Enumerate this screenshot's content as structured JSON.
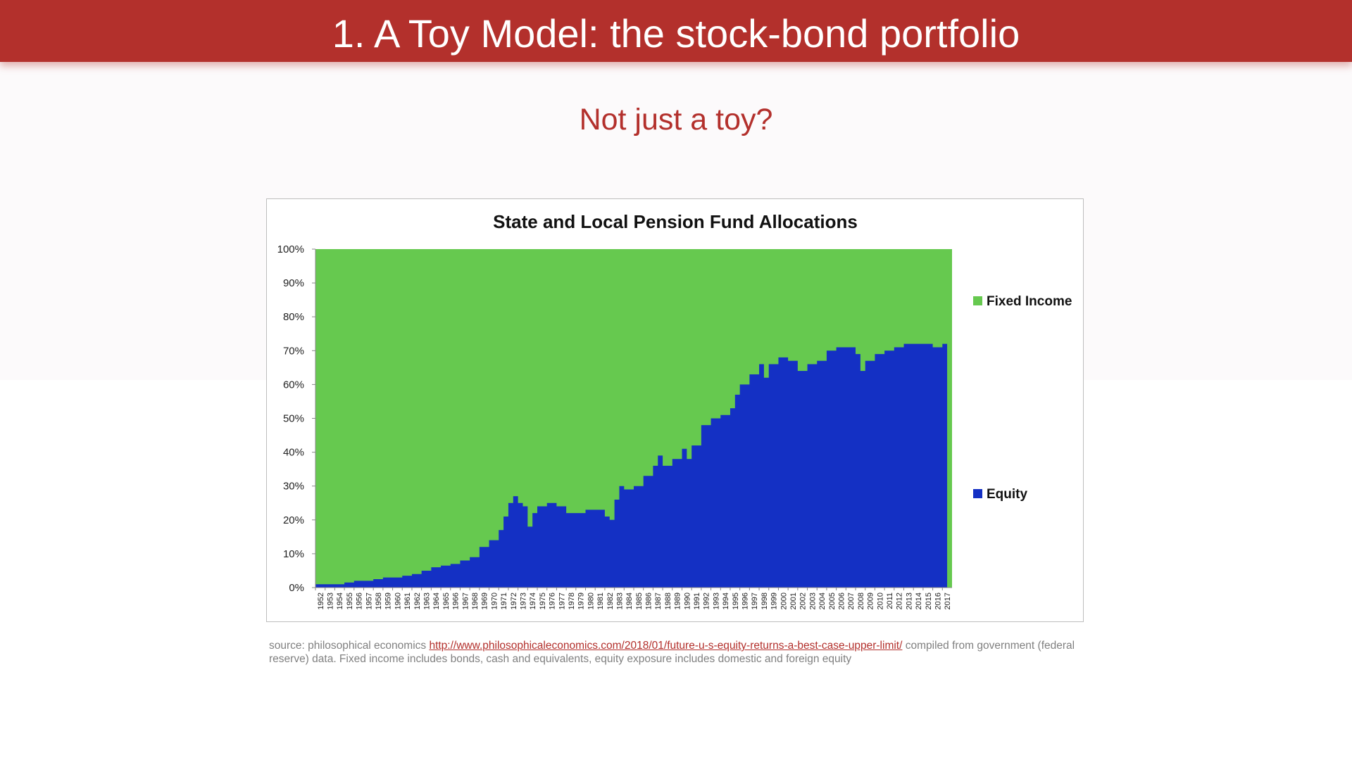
{
  "slide": {
    "title": "1. A Toy Model: the stock-bond portfolio",
    "subtitle": "Not just a toy?",
    "caption_prefix": "source: philosophical economics ",
    "source_link": "http://www.philosophicaleconomics.com/2018/01/future-u-s-equity-returns-a-best-case-upper-limit/",
    "caption_suffix": " compiled from government (federal reserve) data. Fixed income includes bonds, cash and equivalents, equity exposure includes domestic and foreign equity"
  },
  "colors": {
    "title_bar": "#b3302c",
    "fixed_income": "#66c94f",
    "equity": "#1430c4"
  },
  "chart_data": {
    "type": "area",
    "stacked": true,
    "title": "State and Local Pension Fund Allocations",
    "xlabel": "",
    "ylabel": "",
    "ylim": [
      0,
      100
    ],
    "y_ticks": [
      "0%",
      "10%",
      "20%",
      "30%",
      "40%",
      "50%",
      "60%",
      "70%",
      "80%",
      "90%",
      "100%"
    ],
    "x_ticks": [
      "1952",
      "1953",
      "1954",
      "1955",
      "1956",
      "1957",
      "1958",
      "1959",
      "1960",
      "1961",
      "1962",
      "1963",
      "1964",
      "1965",
      "1966",
      "1967",
      "1968",
      "1969",
      "1970",
      "1971",
      "1972",
      "1973",
      "1974",
      "1975",
      "1976",
      "1977",
      "1978",
      "1979",
      "1980",
      "1981",
      "1982",
      "1983",
      "1984",
      "1985",
      "1986",
      "1987",
      "1988",
      "1989",
      "1990",
      "1991",
      "1992",
      "1993",
      "1994",
      "1995",
      "1996",
      "1997",
      "1998",
      "1999",
      "2000",
      "2001",
      "2002",
      "2003",
      "2004",
      "2005",
      "2006",
      "2007",
      "2008",
      "2009",
      "2010",
      "2011",
      "2012",
      "2013",
      "2014",
      "2015",
      "2016",
      "2017"
    ],
    "legend_position": "right",
    "series": [
      {
        "name": "Fixed Income",
        "color": "#66c94f",
        "note": "remainder to 100%"
      },
      {
        "name": "Equity",
        "color": "#1430c4",
        "x": [
          "1952",
          "1953",
          "1954",
          "1955",
          "1956",
          "1957",
          "1958",
          "1959",
          "1960",
          "1961",
          "1962",
          "1963",
          "1964",
          "1965",
          "1966",
          "1967",
          "1968",
          "1969",
          "1970",
          "1971",
          "1971.5",
          "1972",
          "1972.5",
          "1973",
          "1973.5",
          "1974",
          "1974.5",
          "1975",
          "1976",
          "1977",
          "1978",
          "1979",
          "1980",
          "1981",
          "1982",
          "1982.5",
          "1983",
          "1983.5",
          "1984",
          "1985",
          "1986",
          "1987",
          "1987.5",
          "1988",
          "1989",
          "1990",
          "1990.5",
          "1991",
          "1992",
          "1993",
          "1994",
          "1995",
          "1995.5",
          "1996",
          "1997",
          "1998",
          "1998.5",
          "1999",
          "2000",
          "2001",
          "2002",
          "2003",
          "2004",
          "2005",
          "2006",
          "2007",
          "2008",
          "2008.5",
          "2009",
          "2010",
          "2011",
          "2012",
          "2013",
          "2014",
          "2015",
          "2016",
          "2017"
        ],
        "values": [
          1,
          1,
          1,
          1.5,
          2,
          2,
          2.5,
          3,
          3,
          3.5,
          4,
          5,
          6,
          6.5,
          7,
          8,
          9,
          12,
          14,
          17,
          21,
          25,
          27,
          25,
          24,
          18,
          22,
          24,
          25,
          24,
          22,
          22,
          23,
          23,
          21,
          20,
          26,
          30,
          29,
          30,
          33,
          36,
          39,
          36,
          38,
          41,
          38,
          42,
          48,
          50,
          51,
          53,
          57,
          60,
          63,
          66,
          62,
          66,
          68,
          67,
          64,
          66,
          67,
          70,
          71,
          71,
          69,
          64,
          67,
          69,
          70,
          71,
          72,
          72,
          72,
          71,
          72
        ]
      }
    ]
  }
}
